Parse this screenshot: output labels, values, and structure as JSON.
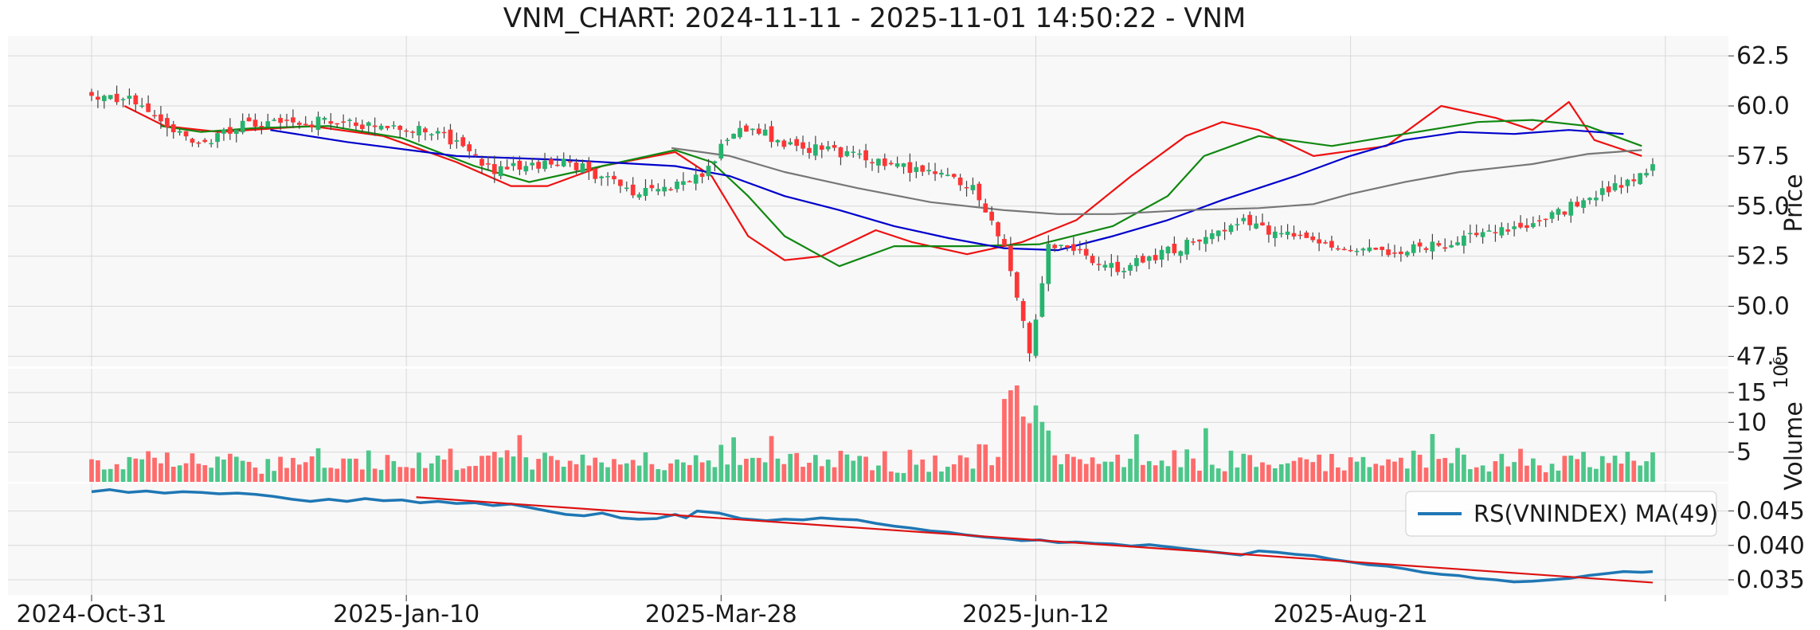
{
  "title": "VNM_CHART: 2024-11-11 - 2025-11-01 14:50:22 - VNM",
  "colors": {
    "up": "#26b36e",
    "down": "#ff3535",
    "volume_up": "#4dc68a",
    "volume_down": "#ff6b6b",
    "ma_short": "#ee1111",
    "ma_mid": "#118811",
    "ma_long": "#0000cc",
    "ma_200": "#777777",
    "rs_line": "#1f77b4",
    "rs_ma": "#dd1111",
    "panel_bg": "#f8f8f8",
    "grid": "#d8d8d8"
  },
  "chart_data": [
    {
      "type": "candlestick",
      "ylabel": "Price",
      "yticks": [
        "47.5",
        "50.0",
        "52.5",
        "55.0",
        "57.5",
        "60.0",
        "62.5"
      ],
      "ylim": [
        47.0,
        63.5
      ],
      "x_start": "2024-10-31",
      "x_end": "2025-10-31",
      "x_unit": "trading day",
      "x_count": 249,
      "moving_averages": [
        {
          "key": "ma_short",
          "start": 9,
          "points": [
            [
              9,
              60.0
            ],
            [
              20,
              59.0
            ],
            [
              35,
              58.7
            ],
            [
              60,
              59.0
            ],
            [
              80,
              58.5
            ],
            [
              100,
              57.2
            ],
            [
              115,
              56.0
            ],
            [
              125,
              56.0
            ],
            [
              140,
              57.0
            ],
            [
              160,
              57.7
            ],
            [
              170,
              56.5
            ],
            [
              175,
              55.0
            ],
            [
              180,
              53.5
            ],
            [
              190,
              52.3
            ],
            [
              200,
              52.5
            ],
            [
              215,
              53.8
            ],
            [
              225,
              53.2
            ],
            [
              240,
              52.6
            ],
            [
              255,
              53.2
            ],
            [
              270,
              54.3
            ],
            [
              285,
              56.5
            ],
            [
              300,
              58.5
            ],
            [
              310,
              59.2
            ],
            [
              320,
              58.8
            ],
            [
              335,
              57.5
            ],
            [
              355,
              58.0
            ],
            [
              370,
              60.0
            ],
            [
              385,
              59.4
            ],
            [
              395,
              58.8
            ],
            [
              405,
              60.2
            ],
            [
              412,
              58.3
            ],
            [
              425,
              57.5
            ]
          ]
        },
        {
          "key": "ma_mid",
          "start": 19,
          "points": [
            [
              19,
              59.0
            ],
            [
              30,
              58.7
            ],
            [
              45,
              58.9
            ],
            [
              65,
              59.0
            ],
            [
              85,
              58.4
            ],
            [
              105,
              57.0
            ],
            [
              120,
              56.2
            ],
            [
              140,
              57.0
            ],
            [
              160,
              57.8
            ],
            [
              170,
              57.2
            ],
            [
              180,
              55.5
            ],
            [
              190,
              53.5
            ],
            [
              205,
              52.0
            ],
            [
              220,
              53.0
            ],
            [
              240,
              53.0
            ],
            [
              260,
              53.1
            ],
            [
              280,
              54.0
            ],
            [
              295,
              55.5
            ],
            [
              305,
              57.5
            ],
            [
              320,
              58.5
            ],
            [
              340,
              58.0
            ],
            [
              360,
              58.6
            ],
            [
              380,
              59.2
            ],
            [
              395,
              59.3
            ],
            [
              410,
              59.0
            ],
            [
              425,
              58.0
            ]
          ]
        },
        {
          "key": "ma_long",
          "start": 49,
          "points": [
            [
              49,
              58.8
            ],
            [
              70,
              58.2
            ],
            [
              100,
              57.5
            ],
            [
              130,
              57.3
            ],
            [
              160,
              57.0
            ],
            [
              175,
              56.5
            ],
            [
              190,
              55.5
            ],
            [
              205,
              54.8
            ],
            [
              220,
              54.0
            ],
            [
              235,
              53.4
            ],
            [
              250,
              52.9
            ],
            [
              265,
              52.8
            ],
            [
              280,
              53.5
            ],
            [
              295,
              54.3
            ],
            [
              310,
              55.3
            ],
            [
              330,
              56.5
            ],
            [
              345,
              57.5
            ],
            [
              360,
              58.3
            ],
            [
              375,
              58.7
            ],
            [
              390,
              58.6
            ],
            [
              405,
              58.8
            ],
            [
              420,
              58.6
            ]
          ]
        },
        {
          "key": "ma_200",
          "start": 159,
          "points": [
            [
              159,
              57.9
            ],
            [
              175,
              57.5
            ],
            [
              190,
              56.7
            ],
            [
              210,
              55.9
            ],
            [
              230,
              55.2
            ],
            [
              250,
              54.8
            ],
            [
              265,
              54.6
            ],
            [
              280,
              54.6
            ],
            [
              300,
              54.8
            ],
            [
              320,
              54.9
            ],
            [
              335,
              55.1
            ],
            [
              345,
              55.6
            ],
            [
              360,
              56.2
            ],
            [
              375,
              56.7
            ],
            [
              395,
              57.1
            ],
            [
              410,
              57.6
            ],
            [
              425,
              57.8
            ]
          ]
        }
      ]
    },
    {
      "type": "bar",
      "ylabel": "Volume",
      "scale_label": "10⁶",
      "yticks": [
        "5",
        "10",
        "15"
      ],
      "ylim": [
        0,
        19
      ]
    },
    {
      "type": "line",
      "series": [
        {
          "name": "RS(VNINDEX) MA(49)",
          "key": "rs_line"
        },
        {
          "name": "",
          "key": "rs_ma",
          "from": [
            89,
            0.047
          ],
          "to": [
            428,
            0.0346
          ]
        }
      ],
      "yticks": [
        "0.035",
        "0.040",
        "0.045"
      ],
      "ylim": [
        0.0328,
        0.049
      ],
      "legend": "right",
      "rs_points": [
        [
          0,
          0.0478
        ],
        [
          5,
          0.0481
        ],
        [
          10,
          0.0477
        ],
        [
          15,
          0.0479
        ],
        [
          20,
          0.0476
        ],
        [
          25,
          0.0478
        ],
        [
          30,
          0.0477
        ],
        [
          35,
          0.0475
        ],
        [
          40,
          0.0476
        ],
        [
          45,
          0.0474
        ],
        [
          50,
          0.0471
        ],
        [
          55,
          0.0467
        ],
        [
          60,
          0.0464
        ],
        [
          65,
          0.0467
        ],
        [
          70,
          0.0464
        ],
        [
          75,
          0.0468
        ],
        [
          80,
          0.0465
        ],
        [
          85,
          0.0466
        ],
        [
          90,
          0.0462
        ],
        [
          95,
          0.0464
        ],
        [
          100,
          0.0461
        ],
        [
          105,
          0.0462
        ],
        [
          110,
          0.0458
        ],
        [
          115,
          0.046
        ],
        [
          120,
          0.0455
        ],
        [
          125,
          0.045
        ],
        [
          130,
          0.0445
        ],
        [
          135,
          0.0443
        ],
        [
          140,
          0.0447
        ],
        [
          145,
          0.044
        ],
        [
          150,
          0.0438
        ],
        [
          155,
          0.0439
        ],
        [
          160,
          0.0445
        ],
        [
          163,
          0.044
        ],
        [
          166,
          0.045
        ],
        [
          172,
          0.0447
        ],
        [
          178,
          0.0439
        ],
        [
          185,
          0.0436
        ],
        [
          190,
          0.0438
        ],
        [
          195,
          0.0437
        ],
        [
          200,
          0.044
        ],
        [
          205,
          0.0438
        ],
        [
          210,
          0.0437
        ],
        [
          215,
          0.0432
        ],
        [
          220,
          0.0428
        ],
        [
          225,
          0.0425
        ],
        [
          230,
          0.0421
        ],
        [
          235,
          0.0419
        ],
        [
          240,
          0.0415
        ],
        [
          245,
          0.0412
        ],
        [
          250,
          0.041
        ],
        [
          255,
          0.0407
        ],
        [
          260,
          0.0408
        ],
        [
          265,
          0.0404
        ],
        [
          270,
          0.0405
        ],
        [
          275,
          0.0403
        ],
        [
          280,
          0.0402
        ],
        [
          285,
          0.0399
        ],
        [
          290,
          0.0401
        ],
        [
          295,
          0.0398
        ],
        [
          300,
          0.0395
        ],
        [
          305,
          0.0392
        ],
        [
          310,
          0.0389
        ],
        [
          315,
          0.0386
        ],
        [
          320,
          0.0392
        ],
        [
          325,
          0.039
        ],
        [
          330,
          0.0387
        ],
        [
          335,
          0.0385
        ],
        [
          340,
          0.038
        ],
        [
          345,
          0.0376
        ],
        [
          350,
          0.0372
        ],
        [
          355,
          0.037
        ],
        [
          360,
          0.0366
        ],
        [
          365,
          0.0361
        ],
        [
          370,
          0.0358
        ],
        [
          375,
          0.0356
        ],
        [
          380,
          0.0352
        ],
        [
          385,
          0.035
        ],
        [
          390,
          0.0347
        ],
        [
          395,
          0.0348
        ],
        [
          400,
          0.035
        ],
        [
          405,
          0.0352
        ],
        [
          410,
          0.0356
        ],
        [
          415,
          0.0359
        ],
        [
          420,
          0.0362
        ],
        [
          425,
          0.0361
        ],
        [
          428,
          0.0362
        ]
      ]
    }
  ],
  "x_axis": {
    "ticks": [
      {
        "i": 0,
        "label": "2024-Oct-31"
      },
      {
        "i": 50,
        "label": "2025-Jan-10"
      },
      {
        "i": 100,
        "label": "2025-Mar-28"
      },
      {
        "i": 150,
        "label": "2025-Jun-12"
      },
      {
        "i": 200,
        "label": "2025-Aug-21"
      },
      {
        "i": 250,
        "label": ""
      }
    ]
  }
}
